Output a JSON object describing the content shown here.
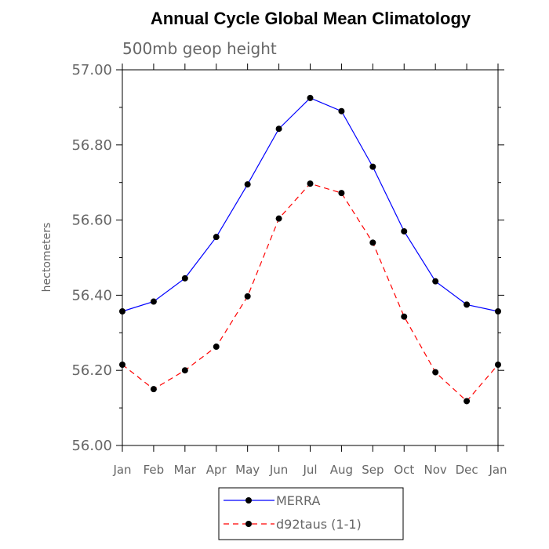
{
  "chart_data": {
    "type": "line",
    "title": "Annual Cycle Global Mean Climatology",
    "subtitle": "500mb geop height",
    "xlabel": "",
    "ylabel": "hectometers",
    "categories": [
      "Jan",
      "Feb",
      "Mar",
      "Apr",
      "May",
      "Jun",
      "Jul",
      "Aug",
      "Sep",
      "Oct",
      "Nov",
      "Dec",
      "Jan"
    ],
    "ylim": [
      56.0,
      57.0
    ],
    "yticks": [
      "56.00",
      "56.20",
      "56.40",
      "56.60",
      "56.80",
      "57.00"
    ],
    "grid": false,
    "legend_position": "bottom-center",
    "series": [
      {
        "name": "MERRA",
        "color": "#0000ff",
        "line_style": "solid",
        "marker": "filled-circle",
        "values": [
          56.357,
          56.383,
          56.445,
          56.555,
          56.695,
          56.843,
          56.925,
          56.89,
          56.742,
          56.57,
          56.437,
          56.375,
          56.357
        ]
      },
      {
        "name": "d92taus (1-1)",
        "color": "#ff0000",
        "line_style": "dashed",
        "marker": "filled-circle",
        "values": [
          56.215,
          56.15,
          56.2,
          56.263,
          56.397,
          56.604,
          56.697,
          56.672,
          56.54,
          56.343,
          56.195,
          56.118,
          56.215
        ]
      }
    ]
  }
}
